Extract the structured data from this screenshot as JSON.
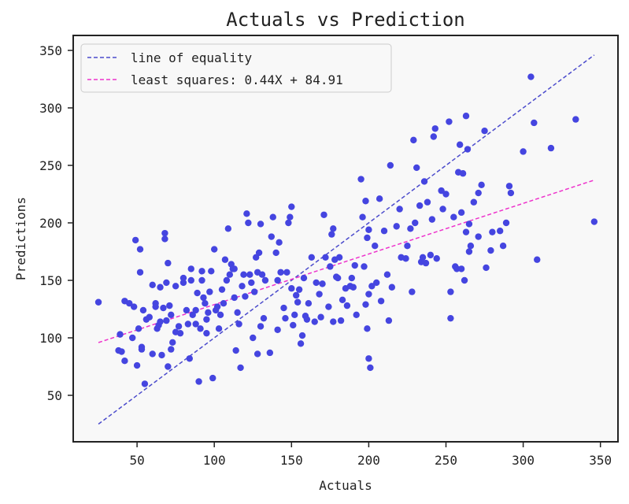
{
  "chart_data": {
    "type": "scatter",
    "title": "Actuals vs Prediction",
    "xlabel": "Actuals",
    "ylabel": "Predictions",
    "xlim": [
      8,
      362
    ],
    "ylim": [
      12,
      360
    ],
    "xticks": [
      50,
      100,
      150,
      200,
      250,
      300,
      350
    ],
    "yticks": [
      50,
      100,
      150,
      200,
      250,
      300,
      350
    ],
    "grid": false,
    "legend_position": "upper left",
    "legend": [
      {
        "label": "line of equality",
        "color": "#4b4bcc",
        "style": "dashed"
      },
      {
        "label": "least squares: 0.44X + 84.91",
        "color": "#ee33cc",
        "style": "dashed"
      }
    ],
    "colors": {
      "points": "#4545e0",
      "equality_line": "#4b4bcc",
      "fit_line": "#ee33cc",
      "plot_bg": "#f8f8f8"
    },
    "lines": [
      {
        "name": "line of equality",
        "x": [
          25,
          346
        ],
        "y": [
          25,
          346
        ]
      },
      {
        "name": "least squares",
        "slope": 0.44,
        "intercept": 84.91,
        "x": [
          25,
          346
        ],
        "y": [
          95.9,
          237.2
        ]
      }
    ],
    "points": [
      [
        25,
        131
      ],
      [
        38,
        89
      ],
      [
        39,
        103
      ],
      [
        40,
        88
      ],
      [
        42,
        80
      ],
      [
        42,
        132
      ],
      [
        45,
        130
      ],
      [
        47,
        100
      ],
      [
        48,
        127
      ],
      [
        49,
        185
      ],
      [
        50,
        76
      ],
      [
        51,
        108
      ],
      [
        52,
        177
      ],
      [
        52,
        157
      ],
      [
        53,
        92
      ],
      [
        53,
        90
      ],
      [
        54,
        124
      ],
      [
        55,
        60
      ],
      [
        56,
        116
      ],
      [
        58,
        118
      ],
      [
        60,
        146
      ],
      [
        60,
        86
      ],
      [
        62,
        130
      ],
      [
        62,
        127
      ],
      [
        63,
        108
      ],
      [
        64,
        111
      ],
      [
        65,
        114
      ],
      [
        65,
        144
      ],
      [
        66,
        85
      ],
      [
        67,
        126
      ],
      [
        68,
        186
      ],
      [
        68,
        191
      ],
      [
        69,
        148
      ],
      [
        69,
        115
      ],
      [
        70,
        165
      ],
      [
        70,
        75
      ],
      [
        71,
        128
      ],
      [
        72,
        120
      ],
      [
        72,
        90
      ],
      [
        73,
        96
      ],
      [
        75,
        145
      ],
      [
        75,
        105
      ],
      [
        77,
        110
      ],
      [
        78,
        104
      ],
      [
        80,
        152
      ],
      [
        80,
        148
      ],
      [
        82,
        124
      ],
      [
        83,
        112
      ],
      [
        84,
        82
      ],
      [
        85,
        160
      ],
      [
        85,
        150
      ],
      [
        86,
        120
      ],
      [
        88,
        124
      ],
      [
        88,
        112
      ],
      [
        89,
        139
      ],
      [
        90,
        62
      ],
      [
        91,
        108
      ],
      [
        92,
        158
      ],
      [
        92,
        150
      ],
      [
        93,
        135
      ],
      [
        94,
        130
      ],
      [
        95,
        116
      ],
      [
        95,
        104
      ],
      [
        96,
        122
      ],
      [
        97,
        140
      ],
      [
        98,
        158
      ],
      [
        99,
        65
      ],
      [
        100,
        177
      ],
      [
        101,
        124
      ],
      [
        102,
        127
      ],
      [
        103,
        108
      ],
      [
        104,
        120
      ],
      [
        105,
        142
      ],
      [
        106,
        130
      ],
      [
        107,
        168
      ],
      [
        108,
        150
      ],
      [
        109,
        195
      ],
      [
        110,
        155
      ],
      [
        111,
        164
      ],
      [
        112,
        160
      ],
      [
        113,
        160
      ],
      [
        113,
        135
      ],
      [
        114,
        89
      ],
      [
        115,
        122
      ],
      [
        116,
        112
      ],
      [
        117,
        74
      ],
      [
        118,
        145
      ],
      [
        119,
        155
      ],
      [
        120,
        136
      ],
      [
        121,
        208
      ],
      [
        122,
        200
      ],
      [
        123,
        155
      ],
      [
        124,
        148
      ],
      [
        125,
        100
      ],
      [
        126,
        140
      ],
      [
        127,
        170
      ],
      [
        128,
        157
      ],
      [
        128,
        86
      ],
      [
        129,
        174
      ],
      [
        130,
        199
      ],
      [
        130,
        110
      ],
      [
        131,
        155
      ],
      [
        132,
        117
      ],
      [
        133,
        150
      ],
      [
        136,
        87
      ],
      [
        137,
        188
      ],
      [
        138,
        205
      ],
      [
        140,
        174
      ],
      [
        141,
        107
      ],
      [
        141,
        150
      ],
      [
        142,
        183
      ],
      [
        143,
        157
      ],
      [
        145,
        126
      ],
      [
        146,
        117
      ],
      [
        147,
        157
      ],
      [
        148,
        200
      ],
      [
        149,
        205
      ],
      [
        150,
        214
      ],
      [
        150,
        143
      ],
      [
        151,
        111
      ],
      [
        152,
        120
      ],
      [
        153,
        137
      ],
      [
        154,
        131
      ],
      [
        155,
        142
      ],
      [
        156,
        95
      ],
      [
        157,
        102
      ],
      [
        158,
        152
      ],
      [
        159,
        119
      ],
      [
        160,
        116
      ],
      [
        161,
        130
      ],
      [
        163,
        170
      ],
      [
        165,
        114
      ],
      [
        166,
        148
      ],
      [
        168,
        138
      ],
      [
        169,
        118
      ],
      [
        170,
        147
      ],
      [
        171,
        207
      ],
      [
        172,
        170
      ],
      [
        174,
        127
      ],
      [
        175,
        162
      ],
      [
        176,
        190
      ],
      [
        177,
        195
      ],
      [
        177,
        114
      ],
      [
        178,
        168
      ],
      [
        179,
        153
      ],
      [
        180,
        152
      ],
      [
        181,
        170
      ],
      [
        182,
        115
      ],
      [
        183,
        133
      ],
      [
        185,
        143
      ],
      [
        186,
        128
      ],
      [
        188,
        145
      ],
      [
        189,
        152
      ],
      [
        190,
        144
      ],
      [
        191,
        163
      ],
      [
        192,
        120
      ],
      [
        195,
        238
      ],
      [
        196,
        205
      ],
      [
        197,
        162
      ],
      [
        198,
        129
      ],
      [
        198,
        219
      ],
      [
        199,
        187
      ],
      [
        199,
        108
      ],
      [
        200,
        82
      ],
      [
        200,
        194
      ],
      [
        200,
        138
      ],
      [
        201,
        74
      ],
      [
        202,
        145
      ],
      [
        204,
        180
      ],
      [
        205,
        148
      ],
      [
        207,
        221
      ],
      [
        208,
        132
      ],
      [
        210,
        193
      ],
      [
        212,
        155
      ],
      [
        213,
        115
      ],
      [
        214,
        250
      ],
      [
        215,
        144
      ],
      [
        218,
        197
      ],
      [
        220,
        212
      ],
      [
        221,
        170
      ],
      [
        224,
        169
      ],
      [
        225,
        180
      ],
      [
        227,
        195
      ],
      [
        228,
        140
      ],
      [
        229,
        272
      ],
      [
        230,
        200
      ],
      [
        231,
        248
      ],
      [
        233,
        215
      ],
      [
        234,
        166
      ],
      [
        235,
        170
      ],
      [
        236,
        236
      ],
      [
        237,
        165
      ],
      [
        238,
        218
      ],
      [
        240,
        172
      ],
      [
        241,
        203
      ],
      [
        242,
        275
      ],
      [
        243,
        282
      ],
      [
        244,
        169
      ],
      [
        247,
        228
      ],
      [
        248,
        212
      ],
      [
        250,
        225
      ],
      [
        252,
        288
      ],
      [
        253,
        140
      ],
      [
        253,
        117
      ],
      [
        255,
        205
      ],
      [
        256,
        162
      ],
      [
        257,
        160
      ],
      [
        258,
        244
      ],
      [
        259,
        268
      ],
      [
        260,
        160
      ],
      [
        260,
        209
      ],
      [
        261,
        243
      ],
      [
        262,
        150
      ],
      [
        263,
        192
      ],
      [
        263,
        293
      ],
      [
        264,
        264
      ],
      [
        265,
        199
      ],
      [
        265,
        175
      ],
      [
        266,
        180
      ],
      [
        268,
        218
      ],
      [
        271,
        188
      ],
      [
        271,
        226
      ],
      [
        273,
        233
      ],
      [
        275,
        280
      ],
      [
        276,
        161
      ],
      [
        279,
        176
      ],
      [
        280,
        192
      ],
      [
        285,
        193
      ],
      [
        287,
        180
      ],
      [
        289,
        200
      ],
      [
        291,
        232
      ],
      [
        292,
        226
      ],
      [
        300,
        262
      ],
      [
        305,
        327
      ],
      [
        307,
        287
      ],
      [
        309,
        168
      ],
      [
        318,
        265
      ],
      [
        334,
        290
      ],
      [
        346,
        201
      ]
    ]
  }
}
